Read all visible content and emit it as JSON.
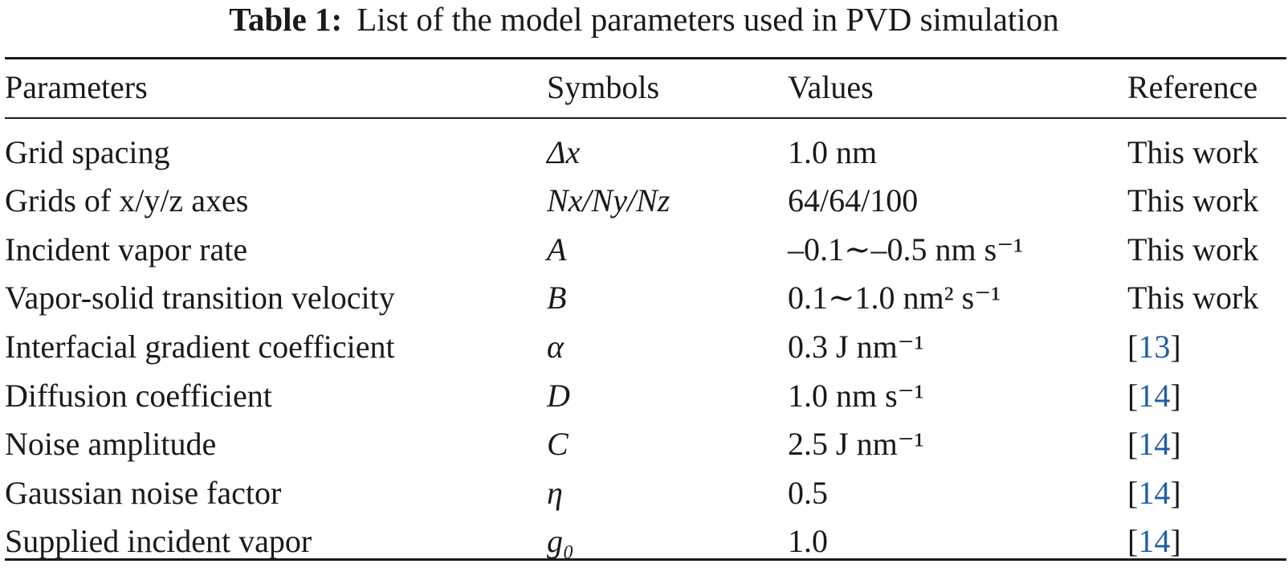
{
  "caption": {
    "label": "Table 1:",
    "text": "List of the model parameters used in PVD simulation"
  },
  "table": {
    "headers": [
      "Parameters",
      "Symbols",
      "Values",
      "Reference"
    ],
    "rows": [
      {
        "parameter": "Grid spacing",
        "symbol": "Δx",
        "value": "1.0 nm",
        "reference": "This work"
      },
      {
        "parameter": "Grids of x/y/z axes",
        "symbol": "Nx/Ny/Nz",
        "value": "64/64/100",
        "reference": "This work"
      },
      {
        "parameter": "Incident vapor rate",
        "symbol": "A",
        "value": "–0.1∼–0.5 nm s⁻¹",
        "reference": "This work"
      },
      {
        "parameter": "Vapor-solid transition velocity",
        "symbol": "B",
        "value": "0.1∼1.0 nm² s⁻¹",
        "reference": "This work"
      },
      {
        "parameter": "Interfacial gradient coefficient",
        "symbol": "α",
        "value": "0.3 J nm⁻¹",
        "reference": "[13]"
      },
      {
        "parameter": "Diffusion coefficient",
        "symbol": "D",
        "value": "1.0 nm s⁻¹",
        "reference": "[14]"
      },
      {
        "parameter": "Noise amplitude",
        "symbol": "C",
        "value": "2.5 J nm⁻¹",
        "reference": "[14]"
      },
      {
        "parameter": "Gaussian noise factor",
        "symbol": "η",
        "value": "0.5",
        "reference": "[14]"
      },
      {
        "parameter": "Supplied incident vapor",
        "symbol": "g₀",
        "value": "1.0",
        "reference": "[14]"
      }
    ]
  },
  "colors": {
    "text": "#1a1a1a",
    "reference_link": "#1f5fa8"
  }
}
